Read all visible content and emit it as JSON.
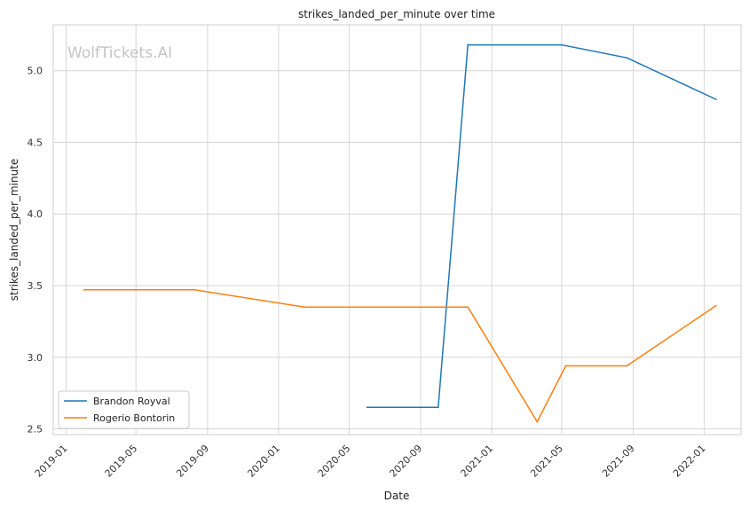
{
  "chart_data": {
    "type": "line",
    "title": "strikes_landed_per_minute over time",
    "xlabel": "Date",
    "ylabel": "strikes_landed_per_minute",
    "watermark": "WolfTickets.AI",
    "x_ticks": [
      "2019-01",
      "2019-05",
      "2019-09",
      "2020-01",
      "2020-05",
      "2020-09",
      "2021-01",
      "2021-05",
      "2021-09",
      "2022-01"
    ],
    "y_ticks": [
      "2.5",
      "3.0",
      "3.5",
      "4.0",
      "4.5",
      "5.0"
    ],
    "xlim": [
      "2018-12-10",
      "2022-03-05"
    ],
    "ylim": [
      2.46,
      5.32
    ],
    "grid": true,
    "legend_position": "lower-left",
    "series": [
      {
        "name": "Brandon Royval",
        "color": "#1f77b4",
        "points": [
          {
            "x": "2020-06-01",
            "y": 2.65
          },
          {
            "x": "2020-10-01",
            "y": 2.65
          },
          {
            "x": "2020-11-21",
            "y": 5.18
          },
          {
            "x": "2021-05-01",
            "y": 5.18
          },
          {
            "x": "2021-08-21",
            "y": 5.09
          },
          {
            "x": "2022-01-21",
            "y": 4.8
          }
        ]
      },
      {
        "name": "Rogerio Bontorin",
        "color": "#ff7f0e",
        "points": [
          {
            "x": "2019-02-01",
            "y": 3.47
          },
          {
            "x": "2019-08-10",
            "y": 3.47
          },
          {
            "x": "2020-02-15",
            "y": 3.35
          },
          {
            "x": "2020-11-21",
            "y": 3.35
          },
          {
            "x": "2021-03-20",
            "y": 2.55
          },
          {
            "x": "2021-05-08",
            "y": 2.94
          },
          {
            "x": "2021-08-21",
            "y": 2.94
          },
          {
            "x": "2022-01-21",
            "y": 3.36
          }
        ]
      }
    ]
  }
}
